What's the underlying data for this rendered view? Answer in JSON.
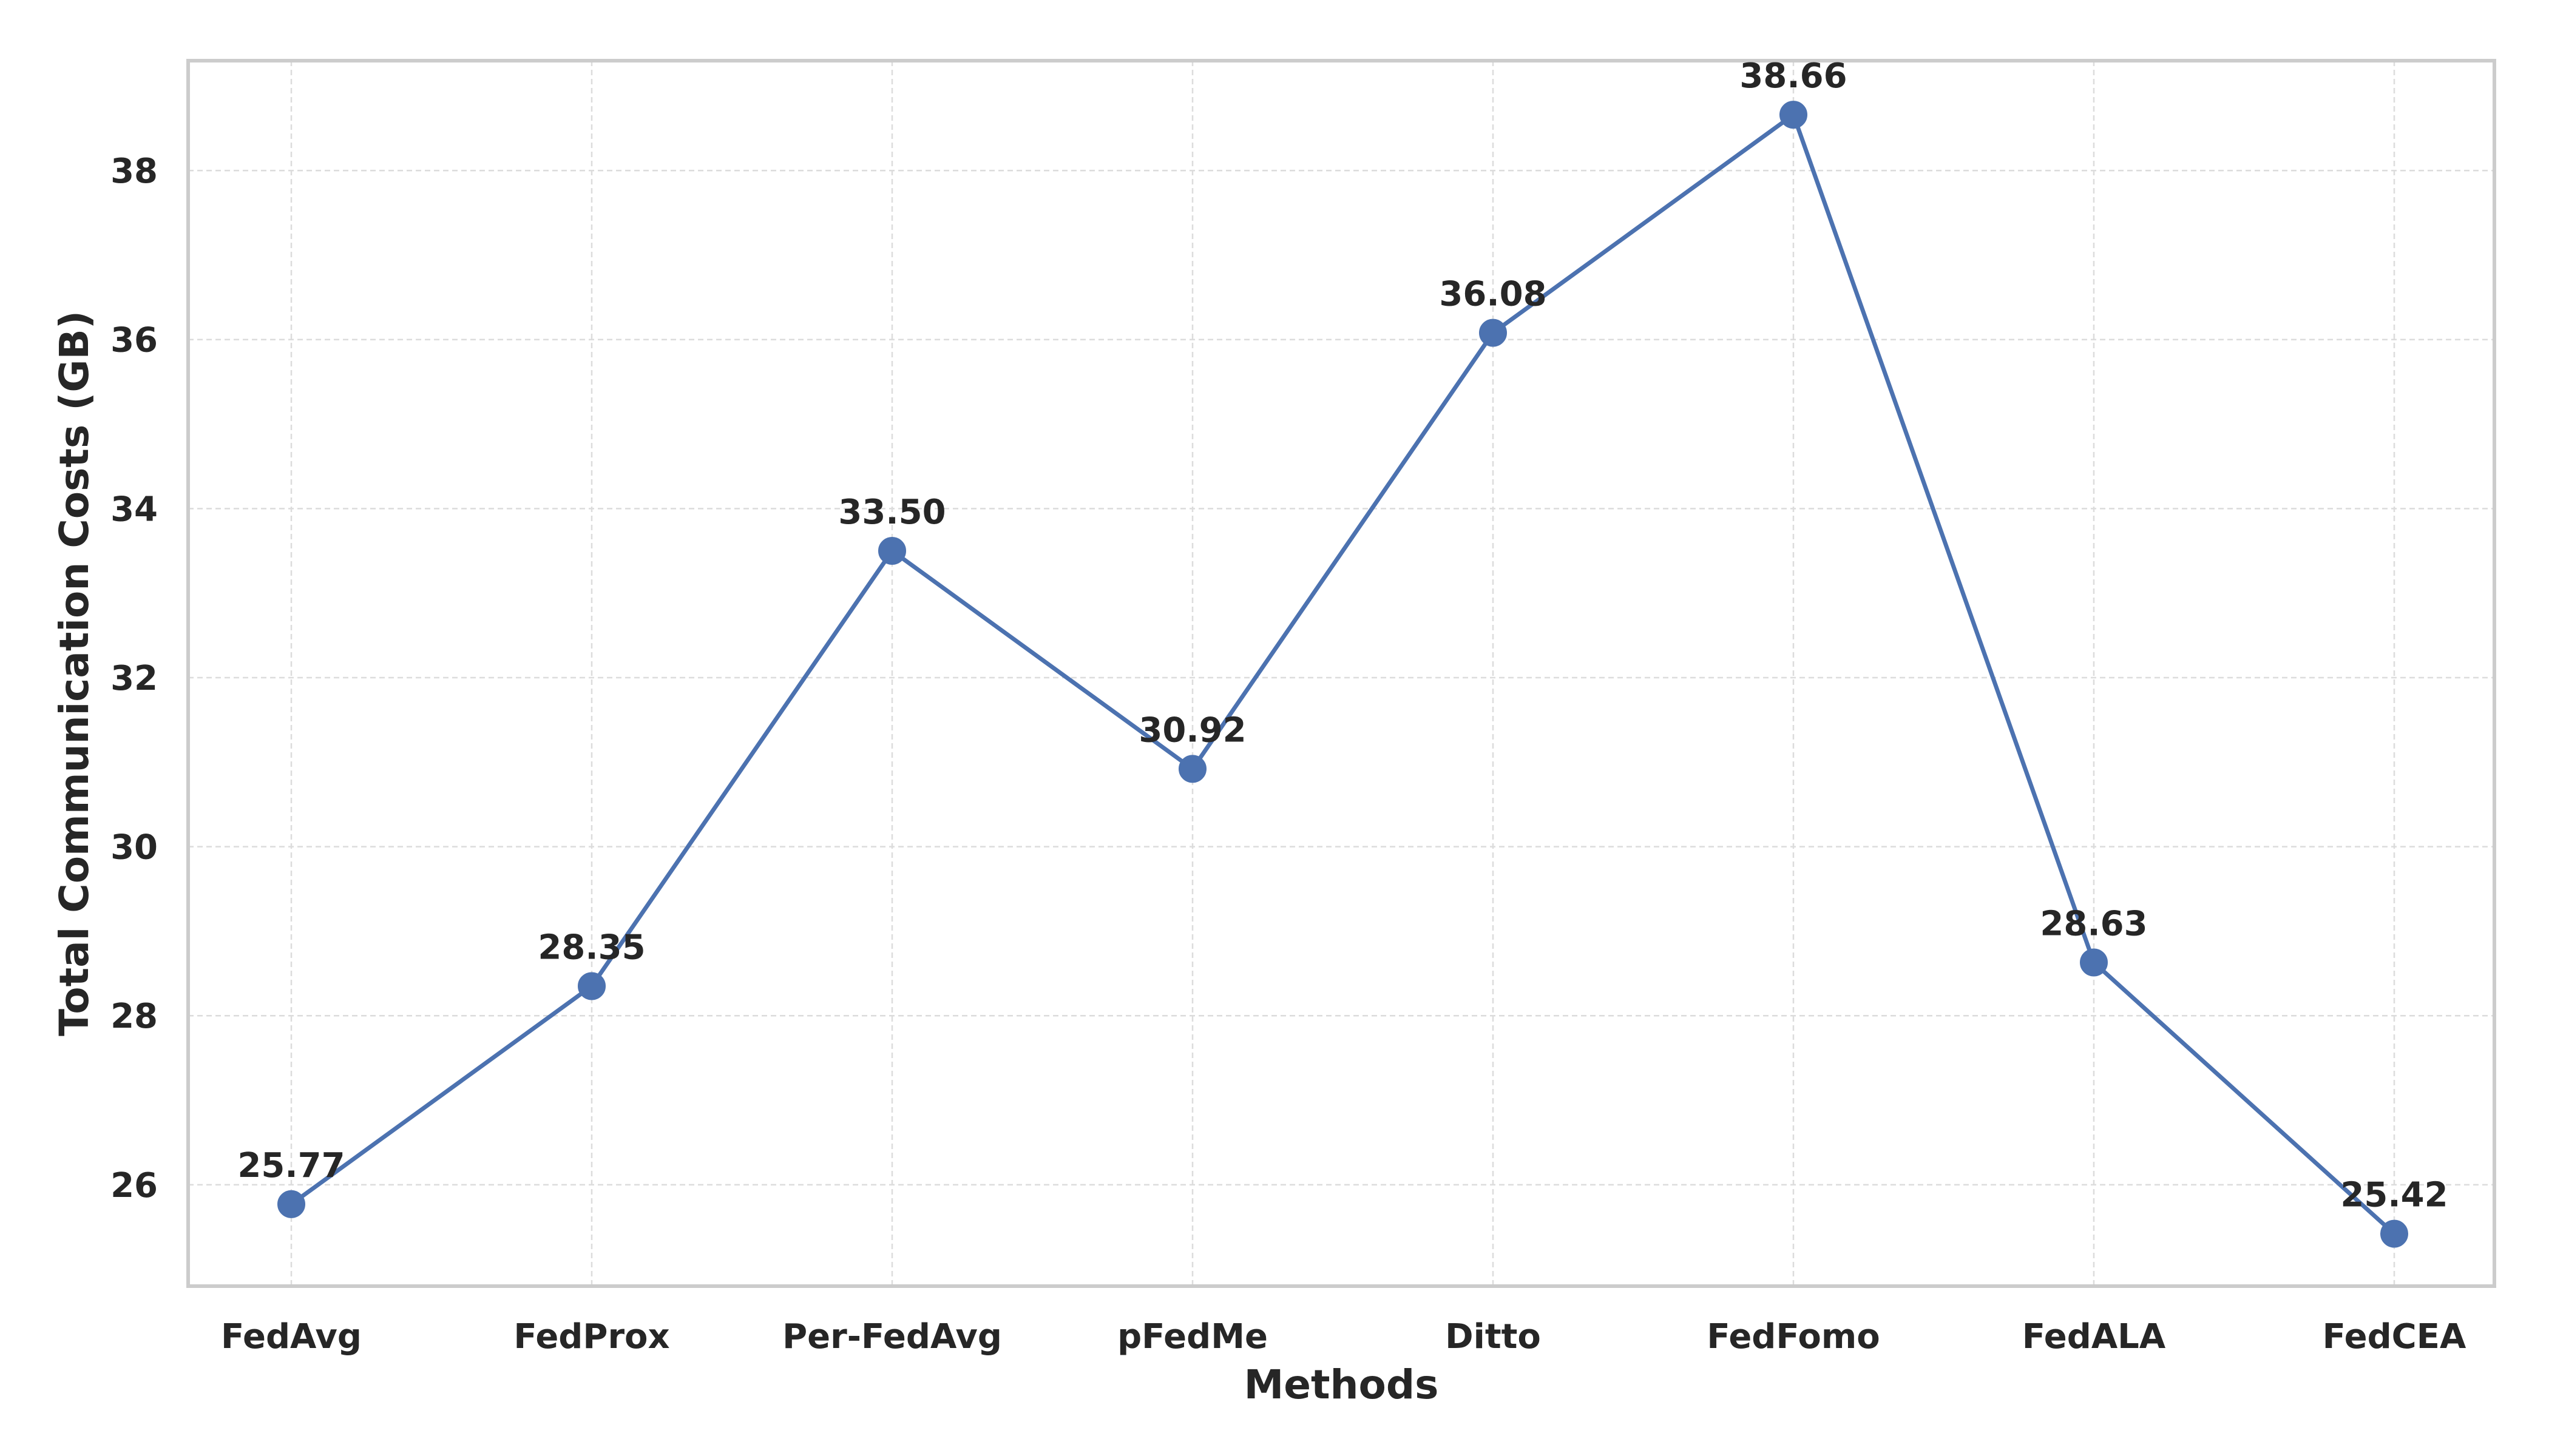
{
  "chart_data": {
    "type": "line",
    "title": "",
    "xlabel": "Methods",
    "ylabel": "Total Communication Costs (GB)",
    "categories": [
      "FedAvg",
      "FedProx",
      "Per-FedAvg",
      "pFedMe",
      "Ditto",
      "FedFomo",
      "FedALA",
      "FedCEA"
    ],
    "series": [
      {
        "name": "Total Communication Costs",
        "values": [
          25.77,
          28.35,
          33.5,
          30.92,
          36.08,
          38.66,
          28.63,
          25.42
        ],
        "labels": [
          "25.77",
          "28.35",
          "33.50",
          "30.92",
          "36.08",
          "38.66",
          "28.63",
          "25.42"
        ],
        "color": "#4c72b0"
      }
    ],
    "ylim": [
      24.8,
      39.3
    ],
    "yticks": [
      26,
      28,
      30,
      32,
      34,
      36,
      38
    ],
    "grid": true,
    "marker": "circle"
  }
}
